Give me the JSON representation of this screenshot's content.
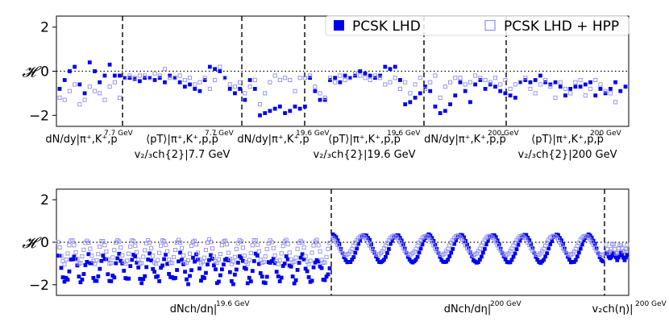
{
  "legend": {
    "entries": [
      {
        "label": "PCSK LHD",
        "color": "#0000ee",
        "marker": "filled-square"
      },
      {
        "label": "PCSK LHD + HPP",
        "color": "#8e8ef3",
        "marker": "open-square"
      }
    ]
  },
  "chart_data": [
    {
      "type": "scatter",
      "panel": "top",
      "ylabel": "𝓗",
      "ylim": [
        -2.5,
        2.5
      ],
      "yticks": [
        -2,
        0,
        2
      ],
      "reference_line": {
        "y": 0,
        "style": "dotted"
      },
      "groups": [
        {
          "line1": "dN/dy|π⁺,K⁺,p",
          "sup": "7.7 GeV",
          "line2": ""
        },
        {
          "line1": "⟨pT⟩|π⁺,K⁺,p,p̄",
          "sup": "7.7 GeV",
          "line2": "v₂/₃ch{2}|7.7 GeV"
        },
        {
          "line1": "dN/dy|π⁺,K⁺,p",
          "sup": "19.6 GeV",
          "line2": ""
        },
        {
          "line1": "⟨pT⟩|π⁺,K⁺,p,p̄",
          "sup": "19.6 GeV",
          "line2": "v₂/₃ch{2}|19.6 GeV"
        },
        {
          "line1": "dN/dy|π⁺,K⁺,p,p̄",
          "sup": "200 GeV",
          "line2": ""
        },
        {
          "line1": "⟨pT⟩|π⁺,K⁺,p,p̄",
          "sup": "200 GeV",
          "line2": "v₂/₃ch{2}|200 GeV"
        }
      ],
      "series": [
        {
          "name": "PCSK LHD",
          "values": [
            -0.8,
            -0.4,
            0.0,
            0.2,
            -0.6,
            -1.0,
            0.4,
            0.0,
            -0.5,
            -0.2,
            0.3,
            -0.2,
            -0.2,
            -0.3,
            -0.3,
            -0.35,
            -0.45,
            -0.3,
            -0.3,
            -0.4,
            -0.3,
            -0.5,
            -0.2,
            -0.3,
            -0.5,
            -0.7,
            -0.6,
            -0.8,
            -0.9,
            -0.4,
            0.2,
            0.1,
            0.0,
            -0.3,
            -0.8,
            -1.0,
            -0.8,
            -1.3,
            -0.4,
            -0.8,
            -2.0,
            -1.9,
            -1.8,
            -1.7,
            -1.6,
            -1.9,
            -1.8,
            -1.6,
            -1.7,
            -1.6,
            -0.3,
            -0.9,
            -1.3,
            -1.3,
            -0.4,
            -0.3,
            -0.5,
            -0.2,
            -0.3,
            -0.2,
            0.0,
            -0.1,
            -0.2,
            -0.3,
            -0.2,
            0.2,
            0.1,
            0.2,
            -0.4,
            -1.5,
            -1.4,
            -1.2,
            -1.0,
            -0.7,
            -0.9,
            -1.6,
            -1.9,
            -1.8,
            -1.5,
            -1.1,
            -0.5,
            -0.9,
            -1.4,
            -0.6,
            -0.4,
            -0.8,
            -0.6,
            -0.7,
            -0.9,
            -1.0,
            -1.1,
            -1.2,
            -0.5,
            -0.4,
            -0.5,
            -0.4,
            -0.2,
            -0.5,
            -0.6,
            -0.5,
            -0.7,
            -1.1,
            -0.8,
            -0.7,
            -0.7,
            -0.6,
            -0.5,
            -1.1,
            -0.8,
            -1.0,
            -0.8,
            -0.5,
            -0.9,
            -0.7
          ]
        },
        {
          "name": "PCSK LHD + HPP",
          "values": [
            -1.2,
            -1.3,
            -0.9,
            -0.6,
            -1.5,
            -1.3,
            -0.7,
            -0.9,
            -1.0,
            -1.3,
            -0.7,
            -0.5,
            -1.2,
            -0.3,
            -0.2,
            -0.3,
            -0.2,
            -0.2,
            -0.3,
            -0.1,
            -0.2,
            0.1,
            -0.3,
            -0.3,
            -0.2,
            -0.4,
            -0.3,
            -0.6,
            -0.5,
            -0.3,
            -0.8,
            -0.4,
            0.2,
            -0.3,
            -0.6,
            -0.7,
            -0.5,
            -1.0,
            -0.7,
            -0.4,
            -1.5,
            -1.0,
            -0.5,
            -0.2,
            -0.4,
            -0.3,
            -0.4,
            -0.9,
            -0.3,
            -0.3,
            -0.2,
            -0.7,
            -1.0,
            -1.2,
            -0.3,
            -0.5,
            -0.2,
            -0.4,
            -0.3,
            -0.1,
            -0.2,
            -0.3,
            -0.4,
            -0.2,
            -0.3,
            -0.6,
            -0.5,
            -0.3,
            -0.8,
            -0.5,
            -1.0,
            -0.6,
            -0.3,
            -0.8,
            -0.5,
            -0.2,
            -1.2,
            -0.7,
            -0.5,
            -0.3,
            -0.3,
            -0.6,
            -0.5,
            -0.2,
            -0.3,
            -0.4,
            -0.5,
            -0.3,
            -0.6,
            -0.4,
            -0.8,
            -0.6,
            -0.5,
            -0.3,
            -0.8,
            -1.0,
            -0.6,
            -0.4,
            -0.7,
            -1.2,
            -0.5,
            -0.8,
            -1.0,
            -0.5,
            -0.4,
            -1.1,
            -0.8,
            -0.4,
            -0.6,
            -0.9,
            -1.0,
            -1.4
          ]
        }
      ]
    },
    {
      "type": "scatter",
      "panel": "bottom",
      "ylabel": "𝓗",
      "ylim": [
        -2.5,
        2.5
      ],
      "yticks": [
        -2,
        0,
        2
      ],
      "reference_line": {
        "y": 0,
        "style": "dotted"
      },
      "groups": [
        {
          "line1": "dNch/dη|",
          "sup": "19.6 GeV"
        },
        {
          "line1": "dNch/dη|",
          "sup": "200 GeV"
        },
        {
          "line1": "v₂ch(η)|",
          "sup": "200 GeV"
        }
      ],
      "series": [
        {
          "name": "PCSK LHD",
          "segments": [
            {
              "n": 170,
              "base": -1.25,
              "amp": 0.55,
              "period": 9.5,
              "noise": 0.45
            },
            {
              "n": 170,
              "base": -0.3,
              "amp": 0.65,
              "period": 20.0,
              "noise": 0.05
            },
            {
              "n": 18,
              "base": -0.65,
              "amp": 0.15,
              "period": 6.0,
              "noise": 0.12
            }
          ]
        },
        {
          "name": "PCSK LHD + HPP",
          "segments": [
            {
              "n": 170,
              "base": -0.45,
              "amp": 0.55,
              "period": 9.5,
              "noise": 0.08
            },
            {
              "n": 170,
              "base": -0.15,
              "amp": 0.45,
              "period": 20.0,
              "noise": 0.03
            },
            {
              "n": 18,
              "base": -0.3,
              "amp": 0.2,
              "period": 6.0,
              "noise": 0.12
            }
          ]
        }
      ]
    }
  ]
}
